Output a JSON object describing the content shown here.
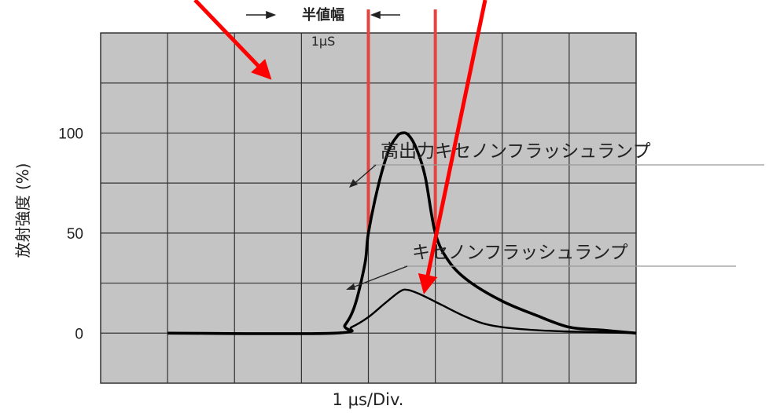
{
  "chart_data": {
    "type": "line",
    "xlabel": "1 μs/Div.",
    "ylabel": "放射強度 (%)",
    "x_unit": "μs",
    "xlim": [
      0,
      6
    ],
    "ylim": [
      -25,
      150
    ],
    "y_ticks": [
      {
        "value": 100,
        "label": "100"
      },
      {
        "value": 50,
        "label": "50"
      },
      {
        "value": 0,
        "label": "0"
      }
    ],
    "grid": true,
    "series": [
      {
        "name": "高出力キセノンフラッシュランプ",
        "points": [
          [
            -1.0,
            0
          ],
          [
            1.5,
            0
          ],
          [
            1.65,
            4
          ],
          [
            1.8,
            14
          ],
          [
            1.95,
            35
          ],
          [
            2.0,
            50
          ],
          [
            2.15,
            74
          ],
          [
            2.3,
            91
          ],
          [
            2.42,
            98
          ],
          [
            2.5,
            100
          ],
          [
            2.6,
            99
          ],
          [
            2.72,
            92
          ],
          [
            2.85,
            78
          ],
          [
            3.0,
            50
          ],
          [
            3.2,
            36
          ],
          [
            3.5,
            26
          ],
          [
            4.0,
            16
          ],
          [
            4.5,
            9
          ],
          [
            5.0,
            3
          ],
          [
            5.5,
            1.5
          ],
          [
            6.0,
            0
          ]
        ]
      },
      {
        "name": "キセノンフラッシュランプ",
        "points": [
          [
            -1.0,
            0
          ],
          [
            1.5,
            0
          ],
          [
            1.75,
            3
          ],
          [
            2.0,
            8
          ],
          [
            2.25,
            15
          ],
          [
            2.48,
            21
          ],
          [
            2.6,
            21.5
          ],
          [
            2.8,
            19
          ],
          [
            3.1,
            14
          ],
          [
            3.4,
            9
          ],
          [
            3.7,
            5
          ],
          [
            4.0,
            3
          ],
          [
            4.5,
            1.5
          ],
          [
            5.0,
            0.8
          ],
          [
            6.0,
            0
          ]
        ]
      }
    ],
    "annotations": {
      "fwhm_label": "半値幅",
      "fwhm_value": "1μS",
      "fwhm_bounds": [
        2.0,
        3.0
      ],
      "fwhm_level": 50
    }
  }
}
